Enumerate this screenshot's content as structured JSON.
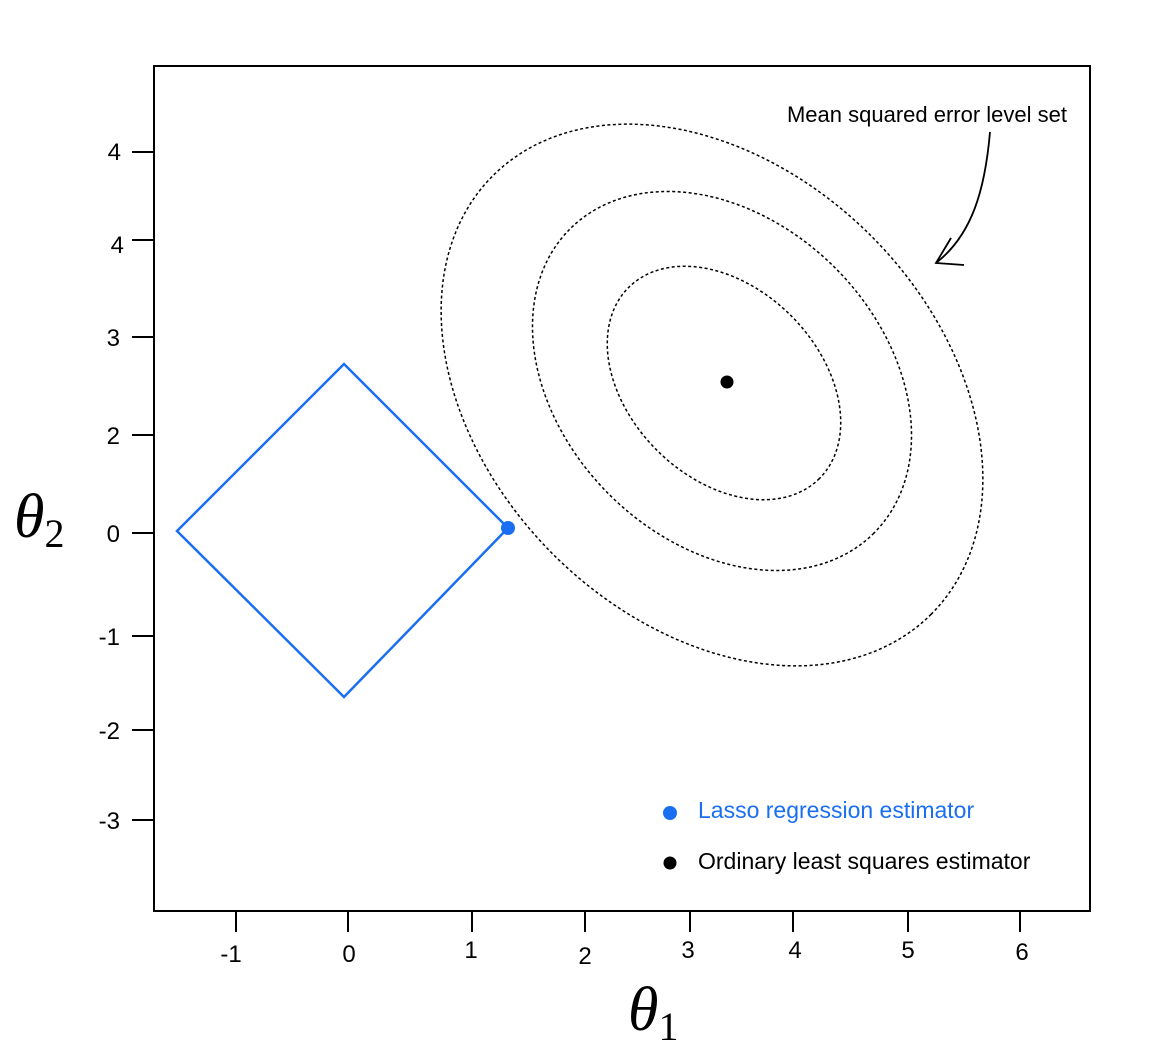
{
  "axes": {
    "x_label": {
      "symbol": "θ",
      "subscript": "1"
    },
    "y_label": {
      "symbol": "θ",
      "subscript": "2"
    },
    "x_tick_labels": [
      "-1",
      "0",
      "1",
      "2",
      "3",
      "4",
      "5",
      "6"
    ],
    "y_tick_labels": [
      "4",
      "4",
      "3",
      "2",
      "0",
      "-1",
      "-2",
      "-3"
    ]
  },
  "annotation": "Mean squared error level set",
  "legend": [
    {
      "label": "Lasso regression estimator",
      "color": "#1a6ef2"
    },
    {
      "label": "Ordinary least squares estimator",
      "color": "#000000"
    }
  ]
}
